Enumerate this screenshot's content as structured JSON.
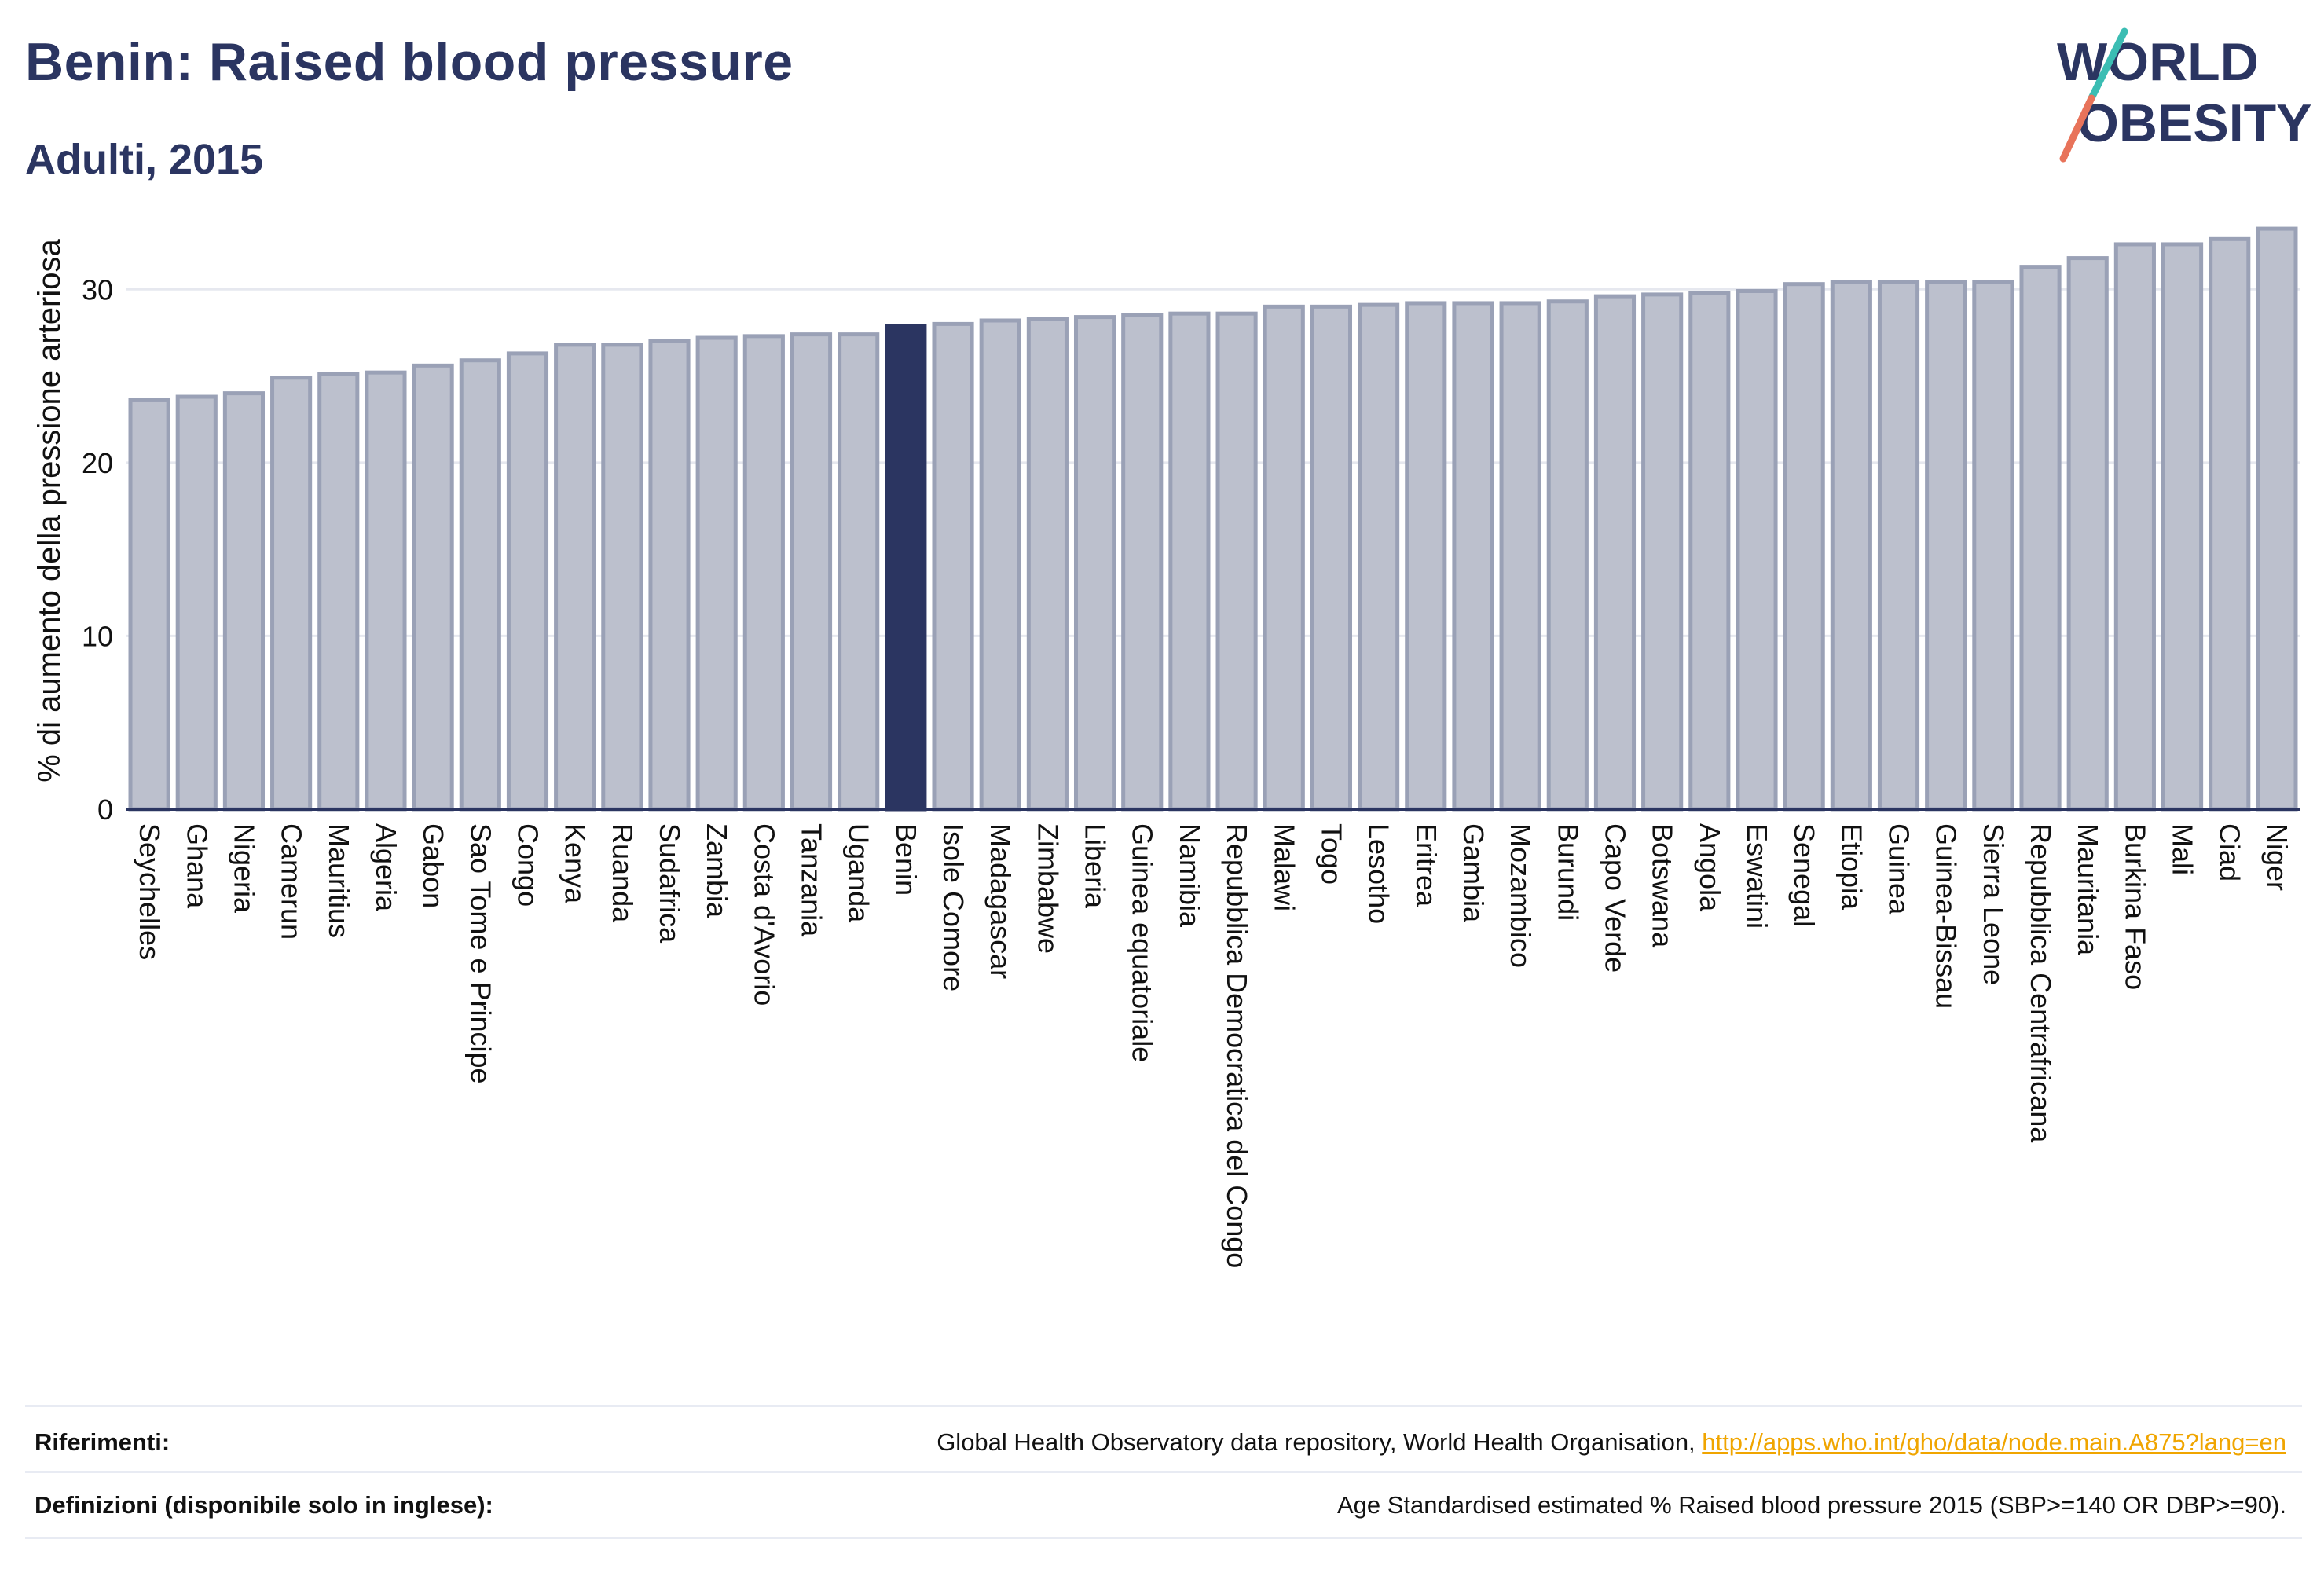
{
  "header": {
    "title": "Benin: Raised blood pressure",
    "subtitle": "Adulti, 2015"
  },
  "logo": {
    "line1": "WORLD",
    "line2": "OBESITY"
  },
  "colors": {
    "title": "#2b3561",
    "bar": "#bcc0cd",
    "bar_border": "#9aa1b6",
    "highlight": "#2b3561",
    "link": "#f0a500"
  },
  "chart_data": {
    "type": "bar",
    "ylabel": "% di aumento della pressione arteriosa",
    "ylim": [
      0,
      35
    ],
    "yticks": [
      0,
      10,
      20,
      30
    ],
    "grid": true,
    "highlight": "Benin",
    "categories": [
      "Seychelles",
      "Ghana",
      "Nigeria",
      "Camerun",
      "Mauritius",
      "Algeria",
      "Gabon",
      "Sao Tome e Principe",
      "Congo",
      "Kenya",
      "Ruanda",
      "Sudafrica",
      "Zambia",
      "Costa d'Avorio",
      "Tanzania",
      "Uganda",
      "Benin",
      "Isole Comore",
      "Madagascar",
      "Zimbabwe",
      "Liberia",
      "Guinea equatoriale",
      "Namibia",
      "Repubblica Democratica del Congo",
      "Malawi",
      "Togo",
      "Lesotho",
      "Eritrea",
      "Gambia",
      "Mozambico",
      "Burundi",
      "Capo Verde",
      "Botswana",
      "Angola",
      "Eswatini",
      "Senegal",
      "Etiopia",
      "Guinea",
      "Guinea-Bissau",
      "Sierra Leone",
      "Repubblica Centrafricana",
      "Mauritania",
      "Burkina Faso",
      "Mali",
      "Ciad",
      "Niger"
    ],
    "values": [
      23.6,
      23.8,
      24.0,
      24.9,
      25.1,
      25.2,
      25.6,
      25.9,
      26.3,
      26.8,
      26.8,
      27.0,
      27.2,
      27.3,
      27.4,
      27.4,
      27.9,
      28.0,
      28.2,
      28.3,
      28.4,
      28.5,
      28.6,
      28.6,
      29.0,
      29.0,
      29.1,
      29.2,
      29.2,
      29.2,
      29.3,
      29.6,
      29.7,
      29.8,
      29.9,
      30.3,
      30.4,
      30.4,
      30.4,
      30.4,
      31.3,
      31.8,
      32.6,
      32.6,
      32.9,
      33.5
    ]
  },
  "footer": {
    "references_label": "Riferimenti:",
    "references_text": "Global Health Observatory data repository, World Health Organisation, ",
    "references_link": "http://apps.who.int/gho/data/node.main.A875?lang=en",
    "definitions_label": "Definizioni (disponibile solo in inglese):",
    "definitions_text": "Age Standardised estimated % Raised blood pressure 2015 (SBP>=140 OR DBP>=90)."
  }
}
